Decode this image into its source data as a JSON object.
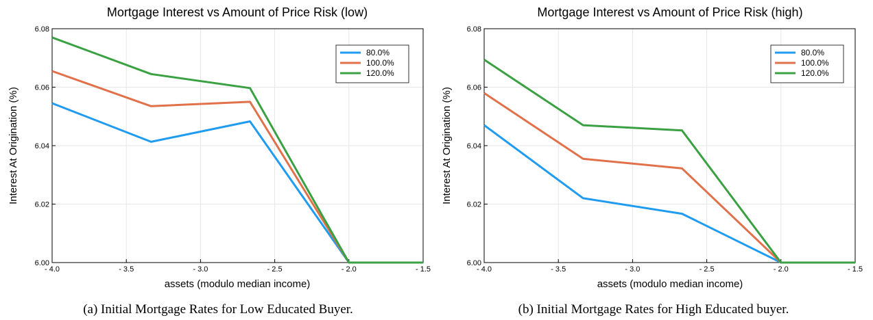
{
  "chart_data": [
    {
      "type": "line",
      "title": "Mortgage Interest vs Amount of Price Risk (low)",
      "xlabel": "assets (modulo median income)",
      "ylabel": "Interest At Origination (%)",
      "xlim": [
        -4.0,
        -1.5
      ],
      "ylim": [
        6.0,
        6.08
      ],
      "xticks": [
        -4.0,
        -3.5,
        -3.0,
        -2.5,
        -2.0,
        -1.5
      ],
      "xtick_labels": [
        "- 4.0",
        "- 3.5",
        "- 3.0",
        "- 2.5",
        "- 2.0",
        "- 1.5"
      ],
      "yticks": [
        6.0,
        6.02,
        6.04,
        6.06,
        6.08
      ],
      "ytick_labels": [
        "6.00",
        "6.02",
        "6.04",
        "6.06",
        "6.08"
      ],
      "grid": true,
      "legend_position": "top-right",
      "x": [
        -4.0,
        -3.333,
        -2.667,
        -2.0,
        -1.5
      ],
      "series": [
        {
          "name": "80.0%",
          "color": "#1f9bef",
          "values": [
            6.0545,
            6.0413,
            6.0483,
            6.0,
            6.0
          ]
        },
        {
          "name": "100.0%",
          "color": "#e0714a",
          "values": [
            6.0655,
            6.0535,
            6.055,
            6.0,
            6.0
          ]
        },
        {
          "name": "120.0%",
          "color": "#3aa142",
          "values": [
            6.077,
            6.0645,
            6.0597,
            6.0,
            6.0
          ]
        }
      ],
      "caption": "(a) Initial Mortgage Rates for Low Educated Buyer."
    },
    {
      "type": "line",
      "title": "Mortgage Interest vs Amount of Price Risk (high)",
      "xlabel": "assets (modulo median income)",
      "ylabel": "Interest At Origination (%)",
      "xlim": [
        -4.0,
        -1.5
      ],
      "ylim": [
        6.0,
        6.08
      ],
      "xticks": [
        -4.0,
        -3.5,
        -3.0,
        -2.5,
        -2.0,
        -1.5
      ],
      "xtick_labels": [
        "- 4.0",
        "- 3.5",
        "- 3.0",
        "- 2.5",
        "- 2.0",
        "- 1.5"
      ],
      "yticks": [
        6.0,
        6.02,
        6.04,
        6.06,
        6.08
      ],
      "ytick_labels": [
        "6.00",
        "6.02",
        "6.04",
        "6.06",
        "6.08"
      ],
      "grid": true,
      "legend_position": "top-right",
      "x": [
        -4.0,
        -3.333,
        -2.667,
        -2.0,
        -1.5
      ],
      "series": [
        {
          "name": "80.0%",
          "color": "#1f9bef",
          "values": [
            6.047,
            6.022,
            6.0167,
            6.0,
            6.0
          ]
        },
        {
          "name": "100.0%",
          "color": "#e0714a",
          "values": [
            6.058,
            6.0355,
            6.0322,
            6.0,
            6.0
          ]
        },
        {
          "name": "120.0%",
          "color": "#3aa142",
          "values": [
            6.0694,
            6.047,
            6.0452,
            6.0,
            6.0
          ]
        }
      ],
      "caption": "(b) Initial Mortgage Rates for High Educated buyer."
    }
  ]
}
